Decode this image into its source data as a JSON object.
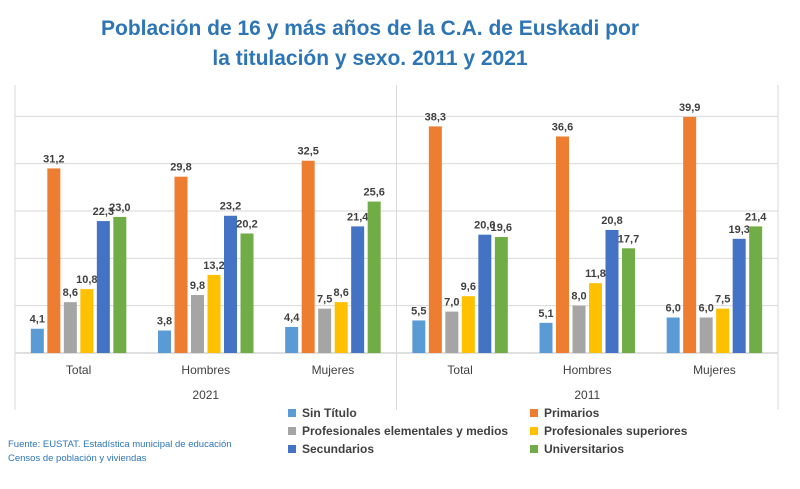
{
  "chart_data": {
    "type": "bar",
    "title_line1": "Población de 16 y más años de la C.A. de Euskadi por",
    "title_line2": "la titulación y sexo. 2011 y 2021",
    "groups": [
      {
        "year": "2021",
        "categories": [
          "Total",
          "Hombres",
          "Mujeres"
        ]
      },
      {
        "year": "2011",
        "categories": [
          "Total",
          "Hombres",
          "Mujeres"
        ]
      }
    ],
    "series": [
      {
        "name": "Sin Título",
        "color": "#5B9BD5",
        "values": [
          4.1,
          3.8,
          4.4,
          5.5,
          5.1,
          6.0
        ],
        "labels": [
          "4,1",
          "3,8",
          "4,4",
          "5,5",
          "5,1",
          "6,0"
        ]
      },
      {
        "name": "Primarios",
        "color": "#ED7D31",
        "values": [
          31.2,
          29.8,
          32.5,
          38.3,
          36.6,
          39.9
        ],
        "labels": [
          "31,2",
          "29,8",
          "32,5",
          "38,3",
          "36,6",
          "39,9"
        ]
      },
      {
        "name": "Profesionales elementales y medios",
        "color": "#A5A5A5",
        "values": [
          8.6,
          9.8,
          7.5,
          7.0,
          8.0,
          6.0
        ],
        "labels": [
          "8,6",
          "9,8",
          "7,5",
          "7,0",
          "8,0",
          "6,0"
        ]
      },
      {
        "name": "Profesionales superiores",
        "color": "#FFC000",
        "values": [
          10.8,
          13.2,
          8.6,
          9.6,
          11.8,
          7.5
        ],
        "labels": [
          "10,8",
          "13,2",
          "8,6",
          "9,6",
          "11,8",
          "7,5"
        ]
      },
      {
        "name": "Secundarios",
        "color": "#4472C4",
        "values": [
          22.3,
          23.2,
          21.4,
          20.0,
          20.8,
          19.3
        ],
        "labels": [
          "22,3",
          "23,2",
          "21,4",
          "20,0",
          "20,8",
          "19,3"
        ]
      },
      {
        "name": "Universitarios",
        "color": "#70AD47",
        "values": [
          23.0,
          20.2,
          25.6,
          19.6,
          17.7,
          21.4
        ],
        "labels": [
          "23,0",
          "20,2",
          "25,6",
          "19,6",
          "17,7",
          "21,4"
        ]
      }
    ],
    "ylim": [
      0,
      40
    ],
    "grid": true,
    "legend_position": "bottom-right"
  },
  "source": {
    "line1": "Fuente: EUSTAT. Estadística municipal de educación",
    "line2": "Censos de población y viviendas"
  }
}
